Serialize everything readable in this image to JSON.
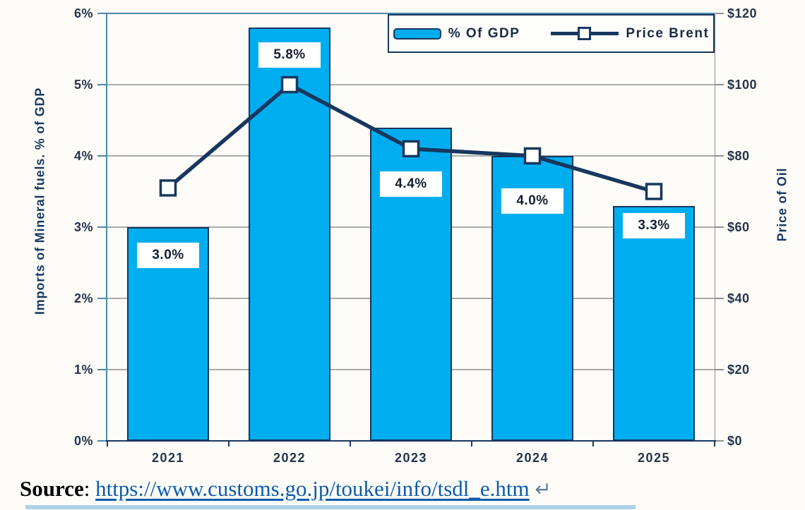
{
  "chart_data": {
    "type": "bar",
    "combo": "bar+line, dual axis",
    "categories": [
      "2021",
      "2022",
      "2023",
      "2024",
      "2025"
    ],
    "series": [
      {
        "name": "% Of GDP",
        "type": "bar",
        "axis": "left",
        "values": [
          3.0,
          5.8,
          4.4,
          4.0,
          3.3
        ],
        "data_labels": [
          "3.0%",
          "5.8%",
          "4.4%",
          "4.0%",
          "3.3%"
        ],
        "fill": "#00AEEF",
        "border": "#17375E"
      },
      {
        "name": "Price Brent",
        "type": "line",
        "axis": "right",
        "values": [
          71,
          100,
          82,
          80,
          70
        ],
        "color": "#17375E",
        "marker": "white-square"
      }
    ],
    "left_axis": {
      "title": "Imports of Mineral fuels. % of GDP",
      "ticks": [
        "0%",
        "1%",
        "2%",
        "3%",
        "4%",
        "5%",
        "6%"
      ],
      "min": 0,
      "max": 6
    },
    "right_axis": {
      "title": "Price of Oil",
      "ticks": [
        "$0",
        "$20",
        "$40",
        "$60",
        "$80",
        "$100",
        "$120"
      ],
      "min": 0,
      "max": 120
    },
    "x_axis": {
      "ticks": [
        "2021",
        "2022",
        "2023",
        "2024",
        "2025"
      ]
    },
    "legend": {
      "position": "top-right",
      "entries": [
        "% Of GDP",
        "Price Brent"
      ]
    },
    "grid": true
  },
  "colors": {
    "bar_fill": "#00AEEF",
    "line": "#17375E",
    "plot_border": "#4889AA",
    "gridline": "#ABABAB"
  },
  "source_line": {
    "label": "Source",
    "separator": ": ",
    "url_text": "https://www.customs.go.jp/toukei/info/tsdl_e.htm",
    "return_mark": "↵"
  }
}
